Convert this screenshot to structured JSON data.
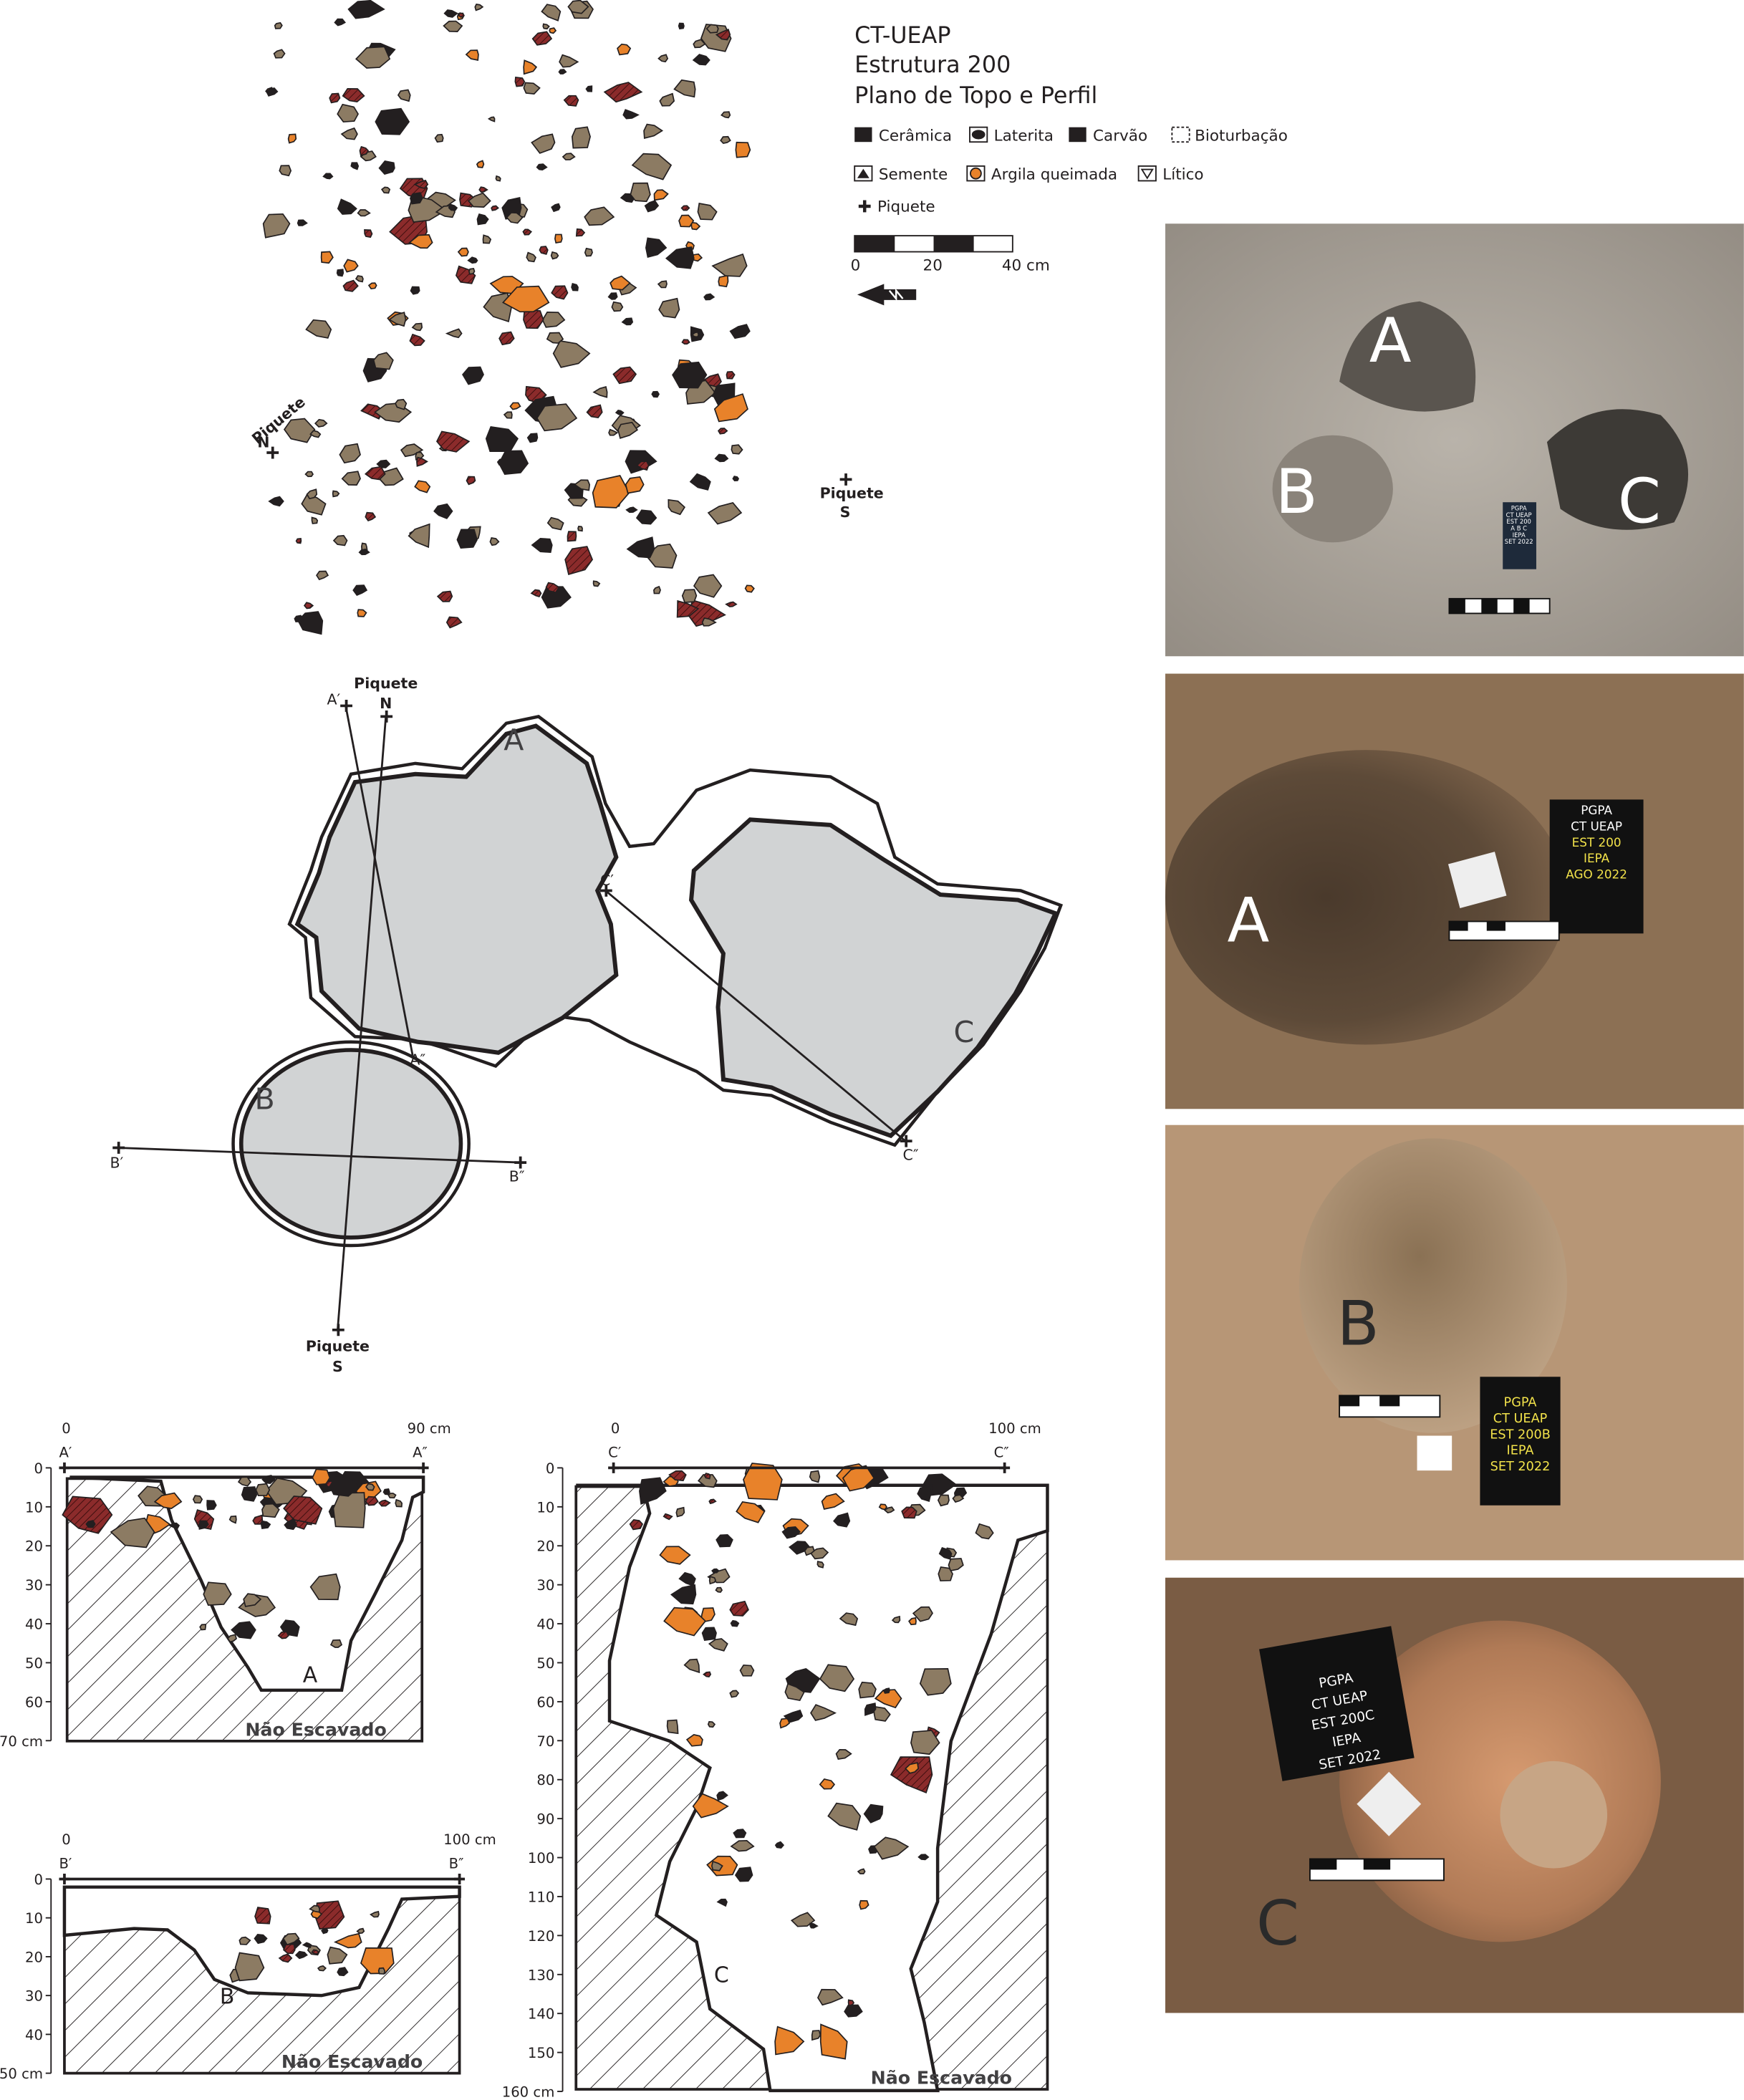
{
  "header": {
    "title_lines": [
      "CT-UEAP",
      "Estrutura 200",
      "Plano de Topo e Perfil"
    ]
  },
  "legend": {
    "items": [
      "Cerâmica",
      "Laterita",
      "Carvão",
      "Bioturbação",
      "Semente",
      "Argila queimada",
      "Lítico",
      "Piquete"
    ],
    "scale_labels": [
      "0",
      "20",
      "40 cm"
    ]
  },
  "plan_top": {
    "piquete_n": [
      "Piquete",
      "N"
    ],
    "piquete_s": [
      "Piquete",
      "S"
    ]
  },
  "plan_outline": {
    "features": [
      "A",
      "B",
      "C"
    ],
    "points": [
      "A′",
      "A″",
      "B′",
      "B″",
      "C′",
      "C″"
    ],
    "piquete_n": [
      "Piquete",
      "N"
    ],
    "piquete_s": [
      "Piquete",
      "S"
    ]
  },
  "profile_a": {
    "feature": "A",
    "ends": [
      "A′",
      "A″"
    ],
    "x_labels": [
      "0",
      "90 cm"
    ],
    "depth_ticks": [
      "0",
      "10",
      "20",
      "30",
      "40",
      "50",
      "60",
      "70 cm"
    ],
    "unexcavated": "Não Escavado"
  },
  "profile_b": {
    "feature": "B",
    "ends": [
      "B′",
      "B″"
    ],
    "x_labels": [
      "0",
      "100 cm"
    ],
    "depth_ticks": [
      "0",
      "10",
      "20",
      "30",
      "40",
      "50 cm"
    ],
    "unexcavated": "Não Escavado"
  },
  "profile_c": {
    "feature": "C",
    "ends": [
      "C′",
      "C″"
    ],
    "x_labels": [
      "0",
      "100 cm"
    ],
    "depth_ticks": [
      "0",
      "10",
      "20",
      "30",
      "40",
      "50",
      "60",
      "70",
      "80",
      "90",
      "100",
      "110",
      "120",
      "130",
      "140",
      "150",
      "160 cm"
    ],
    "unexcavated": "Não Escavado"
  },
  "photos": [
    {
      "letters": [
        "A",
        "B",
        "C"
      ],
      "board": [
        "PGPA",
        "CT UEAP",
        "EST 200",
        "A B C",
        "IEPA",
        "SET 2022"
      ]
    },
    {
      "letters": [
        "A"
      ],
      "board": [
        "PGPA",
        "CT UEAP",
        "EST 200",
        "IEPA",
        "AGO 2022"
      ]
    },
    {
      "letters": [
        "B"
      ],
      "board": [
        "PGPA",
        "CT UEAP",
        "EST 200B",
        "IEPA",
        "SET 2022"
      ]
    },
    {
      "letters": [
        "C"
      ],
      "board": [
        "PGPA",
        "CT UEAP",
        "EST 200C",
        "IEPA",
        "SET 2022"
      ]
    }
  ]
}
